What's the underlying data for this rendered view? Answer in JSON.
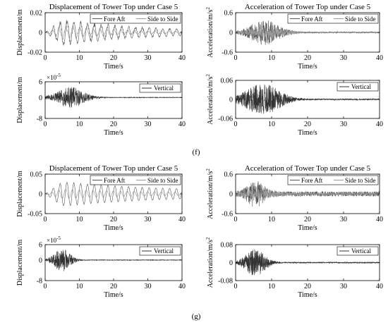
{
  "panels": [
    {
      "label": "(f)"
    },
    {
      "label": "(g)"
    }
  ],
  "chart_data": [
    {
      "type": "line",
      "panel": "f",
      "title": "Displacement of Tower Top under Case 5",
      "xlabel": "Time/s",
      "ylabel": "Displacement/m",
      "xlim": [
        0,
        40
      ],
      "ylim": [
        -0.02,
        0.02
      ],
      "xticks": [
        0,
        10,
        20,
        30,
        40
      ],
      "yticks": [
        -0.02,
        0,
        0.02
      ],
      "ytick_labels": [
        "-0.02",
        "0",
        "0.02"
      ],
      "grid": false,
      "legend_position": "top-right",
      "legend_layout": "horizontal",
      "series": [
        {
          "name": "Fore Aft",
          "color": "#555555",
          "shape": {
            "kind": "swell",
            "amp": 0.012,
            "freq": 0.5,
            "damp": 0.04,
            "phase": 0.3,
            "noise": 0.25,
            "seed": 11,
            "n": 500
          }
        },
        {
          "name": "Side to Side",
          "color": "#9a9a9a",
          "shape": {
            "kind": "swell",
            "amp": 0.006,
            "freq": 0.5,
            "damp": 0.05,
            "phase": 1.3,
            "noise": 0.35,
            "seed": 12,
            "n": 500
          }
        }
      ]
    },
    {
      "type": "line",
      "panel": "f",
      "title": "Acceleration of Tower Top under Case 5",
      "xlabel": "Time/s",
      "ylabel": "Acceleration/m/s",
      "ylabel_superscript": "2",
      "xlim": [
        0,
        40
      ],
      "ylim": [
        -0.6,
        0.6
      ],
      "xticks": [
        0,
        10,
        20,
        30,
        40
      ],
      "yticks": [
        -0.6,
        0,
        0.6
      ],
      "ytick_labels": [
        "-0.6",
        "0",
        "0.6"
      ],
      "grid": false,
      "legend_position": "top-right",
      "legend_layout": "horizontal",
      "series": [
        {
          "name": "Fore Aft",
          "color": "#555555",
          "shape": {
            "kind": "burst",
            "amp": 0.38,
            "center": 8,
            "width": 5,
            "base": 0.06,
            "seed": 21,
            "n": 900
          }
        },
        {
          "name": "Side to Side",
          "color": "#9a9a9a",
          "shape": {
            "kind": "burst",
            "amp": 0.16,
            "center": 9,
            "width": 7,
            "base": 0.04,
            "seed": 22,
            "n": 900
          }
        }
      ]
    },
    {
      "type": "line",
      "panel": "f",
      "title": "",
      "xlabel": "Time/s",
      "ylabel": "Displacement/m",
      "xlim": [
        0,
        40
      ],
      "ylim": [
        -8e-05,
        6e-05
      ],
      "xticks": [
        0,
        10,
        20,
        30,
        40
      ],
      "yticks": [
        -8e-05,
        0,
        6e-05
      ],
      "ytick_labels": [
        "-8",
        "0",
        "6"
      ],
      "exponent_label": "×10",
      "exponent_power": "-5",
      "grid": false,
      "legend_position": "top-right",
      "legend_layout": "vertical",
      "series": [
        {
          "name": "Vertical",
          "color": "#333333",
          "shape": {
            "kind": "burst",
            "amp": 4e-05,
            "center": 7.5,
            "width": 5,
            "base": 0.03,
            "seed": 31,
            "n": 900
          }
        }
      ]
    },
    {
      "type": "line",
      "panel": "f",
      "title": "",
      "xlabel": "Time/s",
      "ylabel": "Acceleration/m/s",
      "ylabel_superscript": "2",
      "xlim": [
        0,
        40
      ],
      "ylim": [
        -0.06,
        0.06
      ],
      "xticks": [
        0,
        10,
        20,
        30,
        40
      ],
      "yticks": [
        -0.06,
        0,
        0.06
      ],
      "ytick_labels": [
        "-0.06",
        "0",
        "0.06"
      ],
      "grid": false,
      "legend_position": "top-right",
      "legend_layout": "vertical",
      "series": [
        {
          "name": "Vertical",
          "color": "#333333",
          "shape": {
            "kind": "burst",
            "amp": 0.05,
            "center": 7.5,
            "width": 6,
            "base": 0.04,
            "seed": 41,
            "n": 1100
          }
        }
      ]
    },
    {
      "type": "line",
      "panel": "g",
      "title": "Displacement of Tower Top under Case 5",
      "xlabel": "Time/s",
      "ylabel": "Displacement/m",
      "xlim": [
        0,
        40
      ],
      "ylim": [
        -0.05,
        0.05
      ],
      "xticks": [
        0,
        10,
        20,
        30,
        40
      ],
      "yticks": [
        -0.05,
        0,
        0.05
      ],
      "ytick_labels": [
        "-0.05",
        "0",
        "0.05"
      ],
      "grid": false,
      "legend_position": "top-right",
      "legend_layout": "horizontal",
      "series": [
        {
          "name": "Fore Aft",
          "color": "#555555",
          "shape": {
            "kind": "swell",
            "amp": 0.03,
            "freq": 0.5,
            "damp": 0.025,
            "phase": 0.4,
            "noise": 0.05,
            "seed": 51,
            "n": 500
          }
        },
        {
          "name": "Side to Side",
          "color": "#9a9a9a",
          "shape": {
            "kind": "swell",
            "amp": 0.012,
            "freq": 0.5,
            "damp": 0.03,
            "phase": 1.6,
            "noise": 0.08,
            "seed": 52,
            "n": 500
          }
        }
      ]
    },
    {
      "type": "line",
      "panel": "g",
      "title": "Acceleration of Tower Top under Case 5",
      "xlabel": "Time/s",
      "ylabel": "Acceleration/m/s",
      "ylabel_superscript": "2",
      "xlim": [
        0,
        40
      ],
      "ylim": [
        -0.6,
        0.6
      ],
      "xticks": [
        0,
        10,
        20,
        30,
        40
      ],
      "yticks": [
        -0.6,
        0,
        0.6
      ],
      "ytick_labels": [
        "-0.6",
        "0",
        "0.6"
      ],
      "grid": false,
      "legend_position": "top-right",
      "legend_layout": "horizontal",
      "series": [
        {
          "name": "Fore Aft",
          "color": "#555555",
          "shape": {
            "kind": "burst",
            "amp": 0.42,
            "center": 5.5,
            "width": 3,
            "base": 0.18,
            "seed": 61,
            "n": 900
          }
        },
        {
          "name": "Side to Side",
          "color": "#9a9a9a",
          "shape": {
            "kind": "burst",
            "amp": 0.15,
            "center": 7,
            "width": 6,
            "base": 0.2,
            "seed": 62,
            "n": 900
          }
        }
      ]
    },
    {
      "type": "line",
      "panel": "g",
      "title": "",
      "xlabel": "Time/s",
      "ylabel": "Displacement/m",
      "xlim": [
        0,
        40
      ],
      "ylim": [
        -8e-05,
        6e-05
      ],
      "xticks": [
        0,
        10,
        20,
        30,
        40
      ],
      "yticks": [
        -8e-05,
        0,
        6e-05
      ],
      "ytick_labels": [
        "-8",
        "0",
        "6"
      ],
      "exponent_label": "×10",
      "exponent_power": "-5",
      "grid": false,
      "legend_position": "top-right",
      "legend_layout": "vertical",
      "series": [
        {
          "name": "Vertical",
          "color": "#333333",
          "shape": {
            "kind": "burst",
            "amp": 4.5e-05,
            "center": 5,
            "width": 3,
            "base": 0.03,
            "seed": 71,
            "n": 900
          }
        }
      ]
    },
    {
      "type": "line",
      "panel": "g",
      "title": "",
      "xlabel": "Time/s",
      "ylabel": "Acceleration/m/s",
      "ylabel_superscript": "2",
      "xlim": [
        0,
        40
      ],
      "ylim": [
        -0.08,
        0.08
      ],
      "xticks": [
        0,
        10,
        20,
        30,
        40
      ],
      "yticks": [
        -0.08,
        0,
        0.08
      ],
      "ytick_labels": [
        "-0.08",
        "0",
        "0.08"
      ],
      "grid": false,
      "legend_position": "top-right",
      "legend_layout": "vertical",
      "series": [
        {
          "name": "Vertical",
          "color": "#333333",
          "shape": {
            "kind": "burst",
            "amp": 0.06,
            "center": 5.5,
            "width": 3.5,
            "base": 0.04,
            "seed": 81,
            "n": 1100
          }
        }
      ]
    }
  ]
}
